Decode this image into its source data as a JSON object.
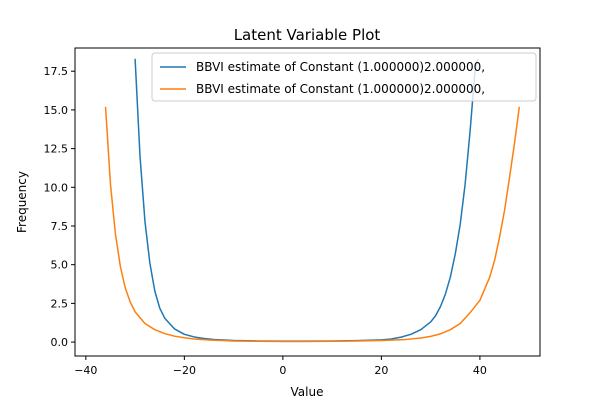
{
  "chart_data": {
    "type": "line",
    "title": "Latent Variable Plot",
    "xlabel": "Value",
    "ylabel": "Frequency",
    "xlim": [
      -42.2,
      52.2
    ],
    "ylim": [
      -0.9,
      19.0
    ],
    "xticks": [
      -40,
      -20,
      0,
      20,
      40
    ],
    "xtick_labels": [
      "−40",
      "−20",
      "0",
      "20",
      "40"
    ],
    "yticks": [
      0,
      2.5,
      5,
      7.5,
      10,
      12.5,
      15,
      17.5
    ],
    "ytick_labels": [
      "0.0",
      "2.5",
      "5.0",
      "7.5",
      "10.0",
      "12.5",
      "15.0",
      "17.5"
    ],
    "legend_position": "upper right",
    "grid": false,
    "series": [
      {
        "name": "BBVI estimate of Constant (1.000000)2.000000,",
        "color": "#1f77b4",
        "x": [
          -30,
          -29,
          -28,
          -27,
          -26,
          -25,
          -24,
          -22,
          -20,
          -18,
          -16,
          -14,
          -12,
          -10,
          -5,
          0,
          5,
          10,
          15,
          20,
          22,
          24,
          26,
          28,
          30,
          31,
          32,
          33,
          34,
          35,
          36,
          37,
          38,
          39,
          39.6
        ],
        "y": [
          18.3,
          12.0,
          7.8,
          5.1,
          3.3,
          2.2,
          1.55,
          0.85,
          0.5,
          0.33,
          0.23,
          0.17,
          0.13,
          0.1,
          0.07,
          0.06,
          0.06,
          0.07,
          0.09,
          0.14,
          0.2,
          0.32,
          0.5,
          0.8,
          1.3,
          1.7,
          2.3,
          3.1,
          4.2,
          5.7,
          7.6,
          10.2,
          13.6,
          17.5,
          18.3
        ]
      },
      {
        "name": "BBVI estimate of Constant (1.000000)2.000000,",
        "color": "#ff7f0e",
        "x": [
          -36,
          -35,
          -34,
          -33,
          -32,
          -31,
          -30,
          -28,
          -26,
          -24,
          -22,
          -20,
          -18,
          -15,
          -10,
          -5,
          0,
          5,
          10,
          15,
          20,
          25,
          28,
          30,
          32,
          34,
          36,
          38,
          40,
          42,
          43,
          44,
          45,
          46,
          47,
          48
        ],
        "y": [
          15.2,
          10.2,
          7.0,
          4.9,
          3.5,
          2.6,
          1.95,
          1.2,
          0.8,
          0.55,
          0.38,
          0.28,
          0.2,
          0.13,
          0.07,
          0.05,
          0.04,
          0.04,
          0.05,
          0.07,
          0.1,
          0.17,
          0.26,
          0.37,
          0.53,
          0.8,
          1.2,
          1.9,
          2.7,
          4.2,
          5.3,
          6.8,
          8.5,
          10.6,
          12.8,
          15.2
        ]
      }
    ]
  }
}
